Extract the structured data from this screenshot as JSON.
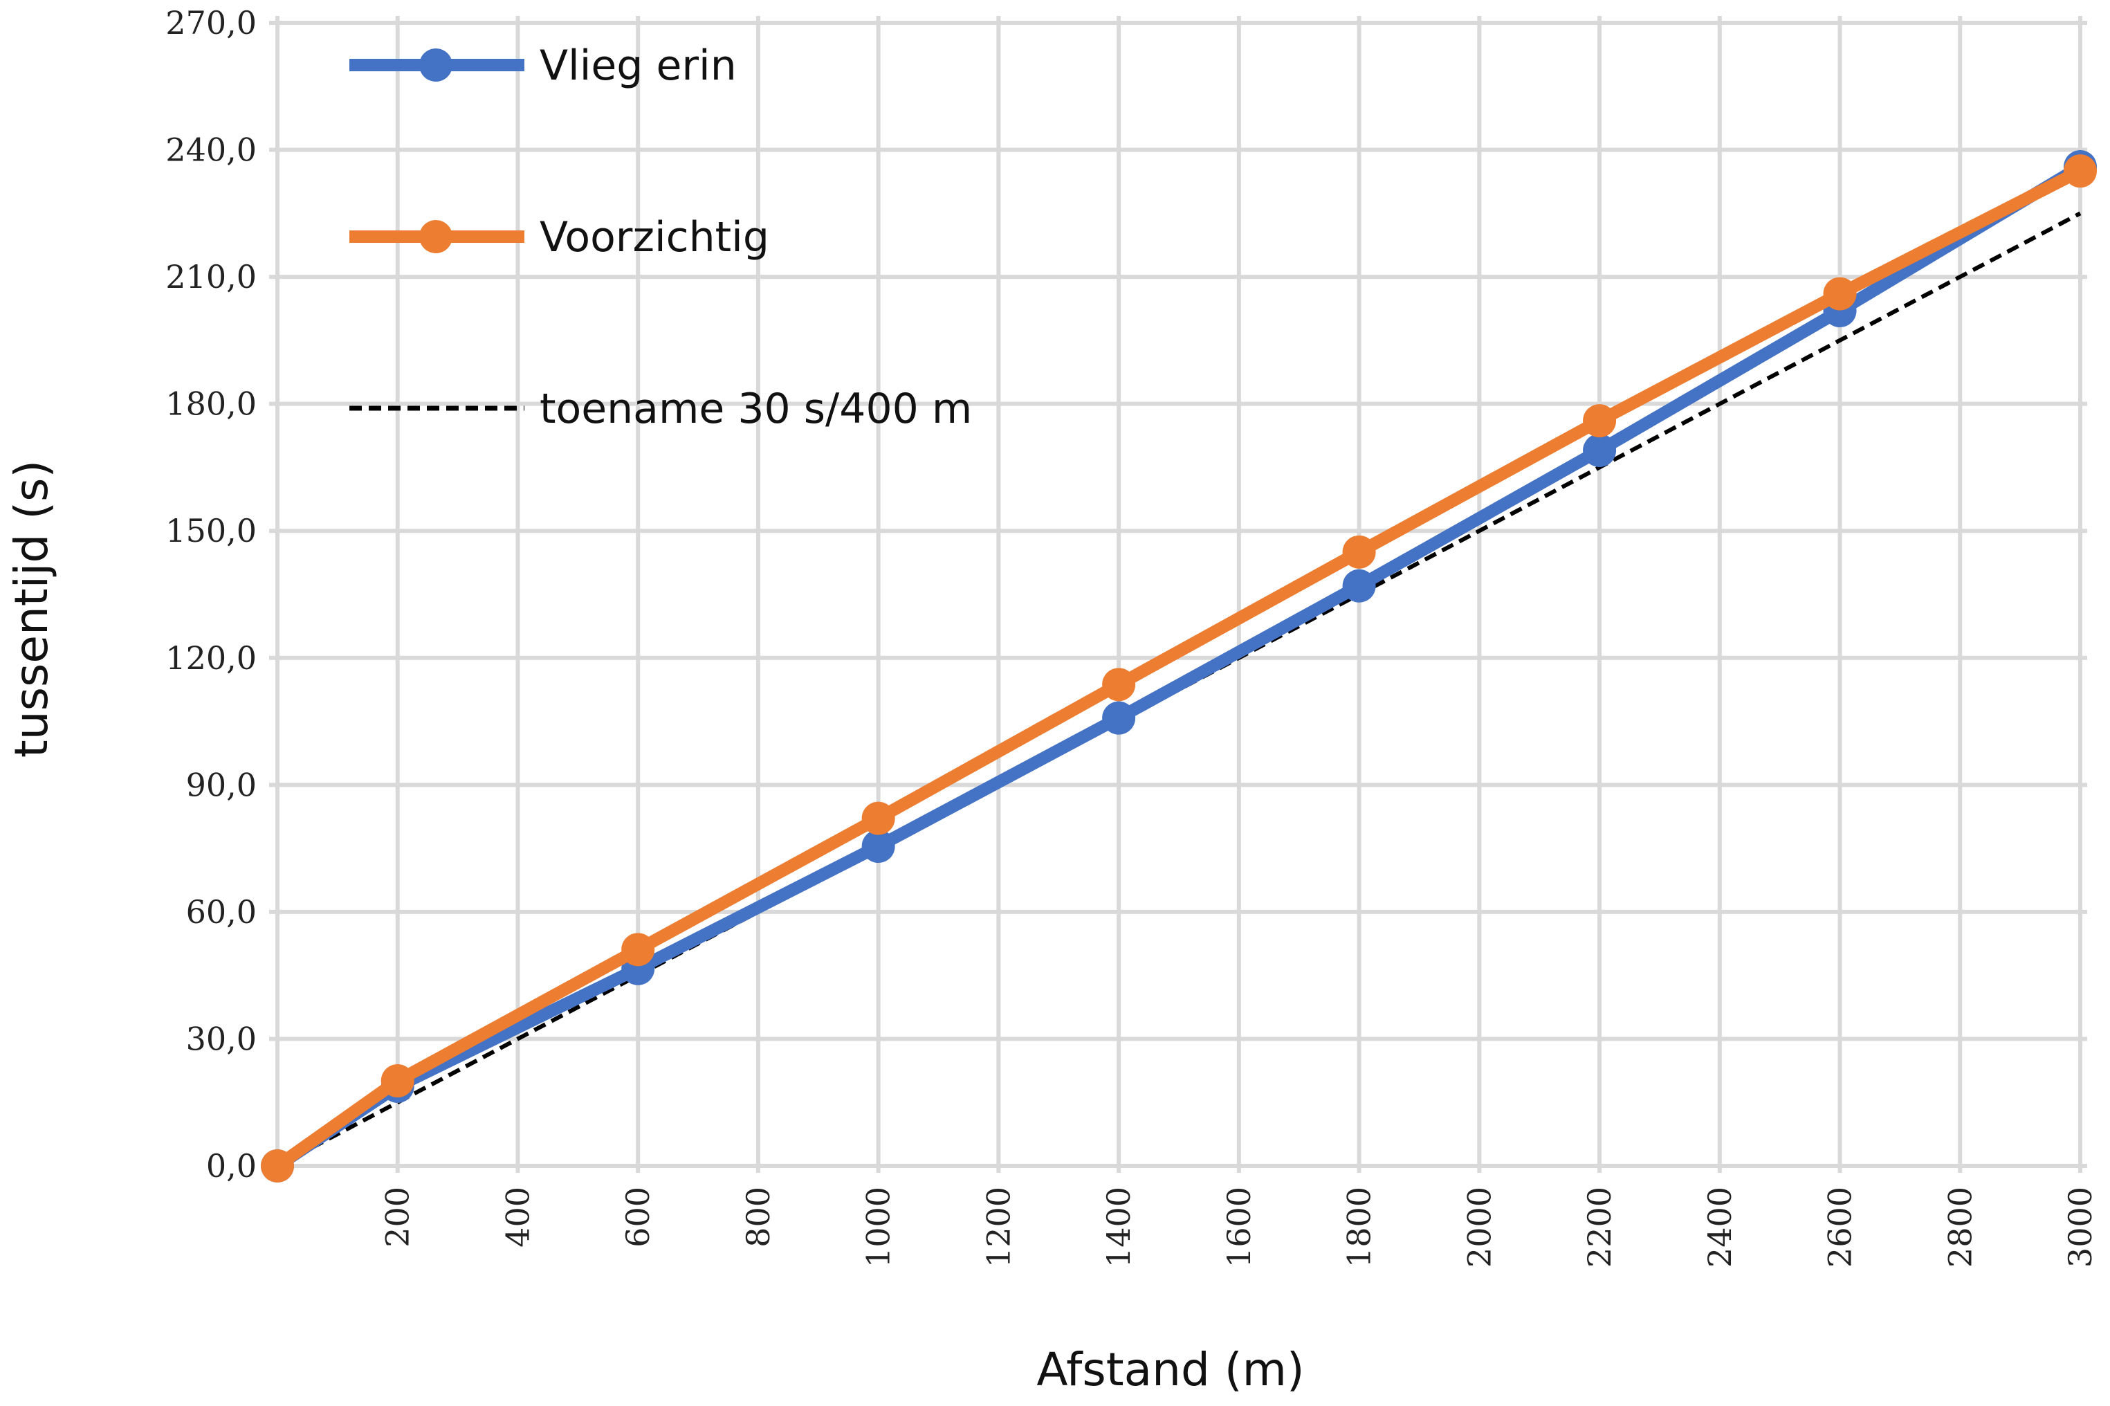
{
  "chart_data": {
    "type": "line",
    "title": "",
    "xlabel": "Afstand (m)",
    "ylabel": "tussentijd (s)",
    "xlim": [
      0,
      3000
    ],
    "ylim": [
      0,
      270
    ],
    "grid": true,
    "legend_position": "top-left",
    "x_ticks": [
      "200",
      "400",
      "600",
      "800",
      "1000",
      "1200",
      "1400",
      "1600",
      "1800",
      "2000",
      "2200",
      "2400",
      "2600",
      "2800",
      "3000"
    ],
    "x_tick_values": [
      200,
      400,
      600,
      800,
      1000,
      1200,
      1400,
      1600,
      1800,
      2000,
      2200,
      2400,
      2600,
      2800,
      3000
    ],
    "y_ticks": [
      "0,0",
      "30,0",
      "60,0",
      "90,0",
      "120,0",
      "150,0",
      "180,0",
      "210,0",
      "240,0",
      "270,0"
    ],
    "y_tick_values": [
      0,
      30,
      60,
      90,
      120,
      150,
      180,
      210,
      240,
      270
    ],
    "series": [
      {
        "name": "Vlieg erin",
        "color": "#4472C4",
        "style": "solid-markers",
        "x": [
          0,
          200,
          600,
          1000,
          1400,
          1800,
          2200,
          2600,
          3000
        ],
        "y": [
          0,
          18.8,
          46.6,
          75.5,
          105.8,
          137,
          169,
          202,
          236
        ]
      },
      {
        "name": "Voorzichtig",
        "color": "#ED7D31",
        "style": "solid-markers",
        "x": [
          0,
          200,
          600,
          1000,
          1400,
          1800,
          2200,
          2600,
          3000
        ],
        "y": [
          0,
          20.1,
          51.1,
          82.1,
          113.7,
          145,
          176,
          206,
          235
        ]
      },
      {
        "name": "toename 30 s/400 m",
        "color": "#000000",
        "style": "dashed",
        "x": [
          0,
          3000
        ],
        "y": [
          0,
          225
        ]
      }
    ]
  }
}
